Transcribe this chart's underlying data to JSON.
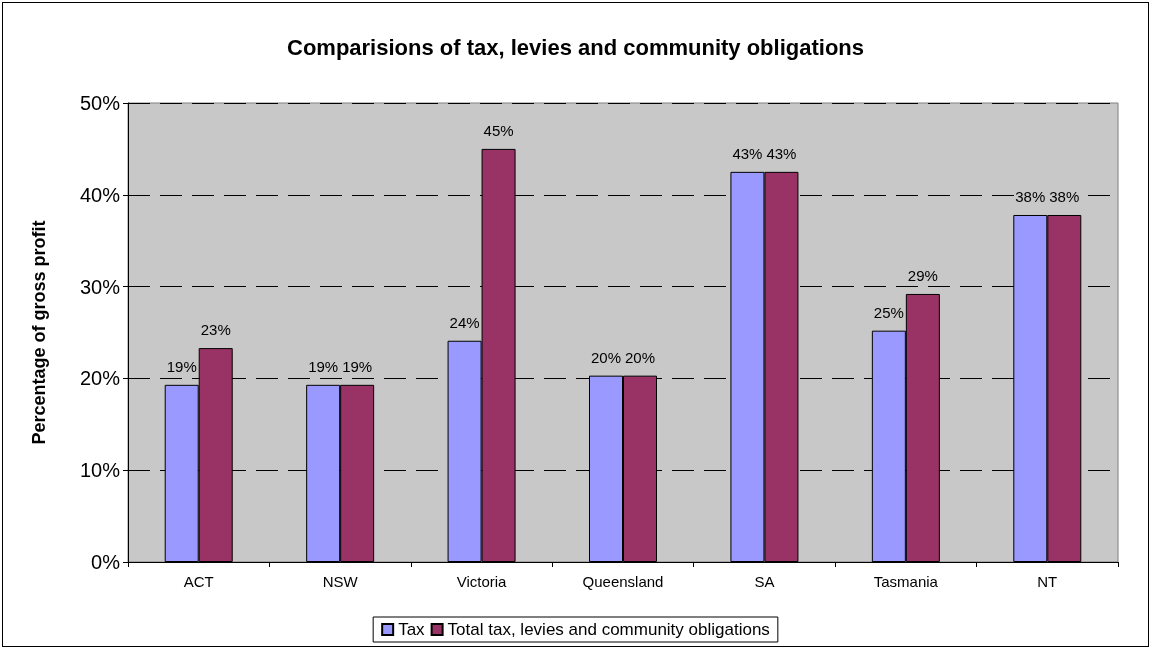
{
  "chart_data": {
    "type": "bar",
    "title": "Comparisions of tax, levies and community obligations",
    "ylabel": "Percentage of gross profit",
    "categories": [
      "ACT",
      "NSW",
      "Victoria",
      "Queensland",
      "SA",
      "Tasmania",
      "NT"
    ],
    "series": [
      {
        "name": "Tax",
        "color": "#9999ff",
        "values": [
          19.3,
          19.3,
          24.1,
          20.3,
          42.5,
          25.2,
          37.8
        ],
        "value_labels": [
          "19%",
          "19%",
          "24%",
          "20%",
          "43%",
          "25%",
          "38%"
        ]
      },
      {
        "name": "Total tax, levies and community obligations",
        "color": "#993366",
        "values": [
          23.3,
          19.3,
          45,
          20.3,
          42.5,
          29.2,
          37.8
        ],
        "value_labels": [
          "23%",
          "19%",
          "45%",
          "20%",
          "43%",
          "29%",
          "38%"
        ]
      }
    ],
    "ylim": [
      0,
      50
    ],
    "yticks": [
      {
        "value": 0,
        "label": "0%"
      },
      {
        "value": 10,
        "label": "10%"
      },
      {
        "value": 20,
        "label": "20%"
      },
      {
        "value": 30,
        "label": "30%"
      },
      {
        "value": 40,
        "label": "40%"
      },
      {
        "value": 50,
        "label": "50%"
      }
    ],
    "grid": "y",
    "legend": "bottom"
  }
}
